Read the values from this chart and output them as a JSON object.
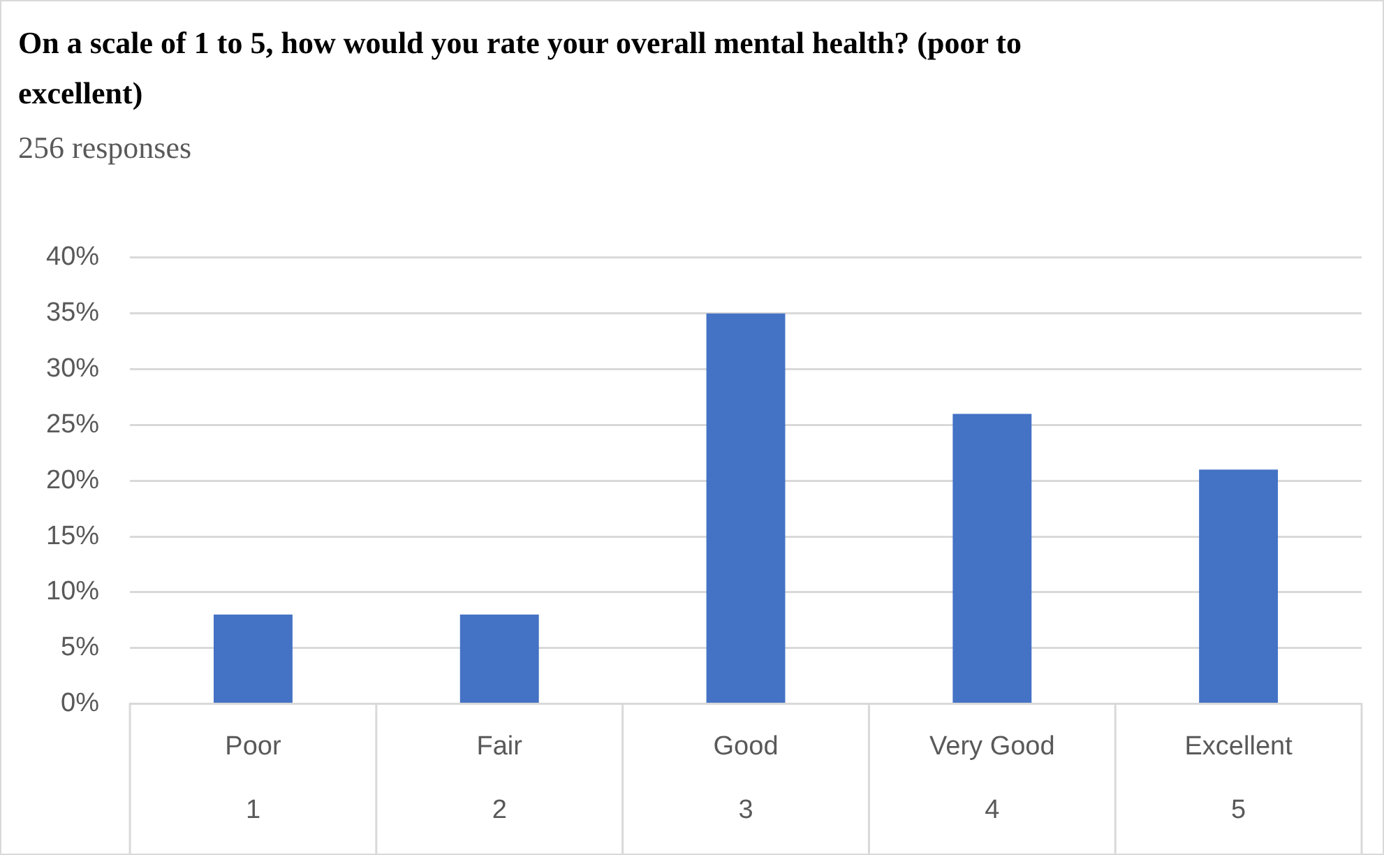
{
  "chart_data": {
    "type": "bar",
    "title": "On a scale of 1 to 5, how would you rate your overall mental health? (poor to excellent)",
    "subtitle": "256 responses",
    "categories": [
      "Poor\n1",
      "Fair\n2",
      "Good\n3",
      "Very Good\n4",
      "Excellent\n5"
    ],
    "values": [
      8,
      8,
      35,
      26,
      21
    ],
    "color": "#4472c4",
    "ylim": [
      0,
      40
    ],
    "yticks": [
      {
        "value": 0,
        "label": "0%"
      },
      {
        "value": 5,
        "label": "5%"
      },
      {
        "value": 10,
        "label": "10%"
      },
      {
        "value": 15,
        "label": "15%"
      },
      {
        "value": 20,
        "label": "20%"
      },
      {
        "value": 25,
        "label": "25%"
      },
      {
        "value": 30,
        "label": "30%"
      },
      {
        "value": 35,
        "label": "35%"
      },
      {
        "value": 40,
        "label": "40%"
      }
    ],
    "grid": "y",
    "legend": false
  }
}
